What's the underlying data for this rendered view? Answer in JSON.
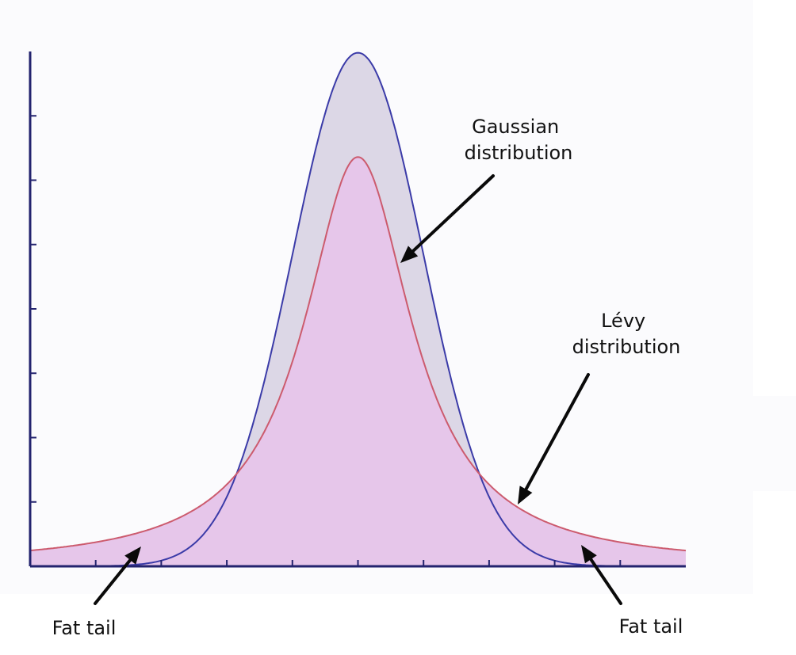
{
  "chart_data": {
    "type": "area",
    "title": "",
    "xlabel": "",
    "ylabel": "",
    "x_range": [
      -5,
      5
    ],
    "y_range": [
      0,
      0.4
    ],
    "x_ticks": [
      -4,
      -3,
      -2,
      -1,
      0,
      1,
      2,
      3,
      4
    ],
    "y_ticks": [
      0.05,
      0.1,
      0.15,
      0.2,
      0.25,
      0.3,
      0.35
    ],
    "tick_labels_shown": false,
    "grid": false,
    "series": [
      {
        "key": "gaussian",
        "model": "normal",
        "mean": 0,
        "sigma": 1,
        "peak": 0.399,
        "line_color": "#3b3ba8",
        "fill_color": "#dcd7e6"
      },
      {
        "key": "levy",
        "model": "cauchy",
        "location": 0,
        "scale": 1,
        "peak": 0.318,
        "line_color": "#cc5b6e",
        "fill_color": "#e6c6ea"
      }
    ],
    "annotations": [
      {
        "key": "gaussian",
        "lines": [
          "Gaussian",
          "distribution"
        ]
      },
      {
        "key": "levy",
        "lines": [
          "Lévy",
          "distribution"
        ]
      },
      {
        "key": "fat-tail-left",
        "lines": [
          "Fat tail"
        ]
      },
      {
        "key": "fat-tail-right",
        "lines": [
          "Fat tail"
        ]
      }
    ]
  }
}
